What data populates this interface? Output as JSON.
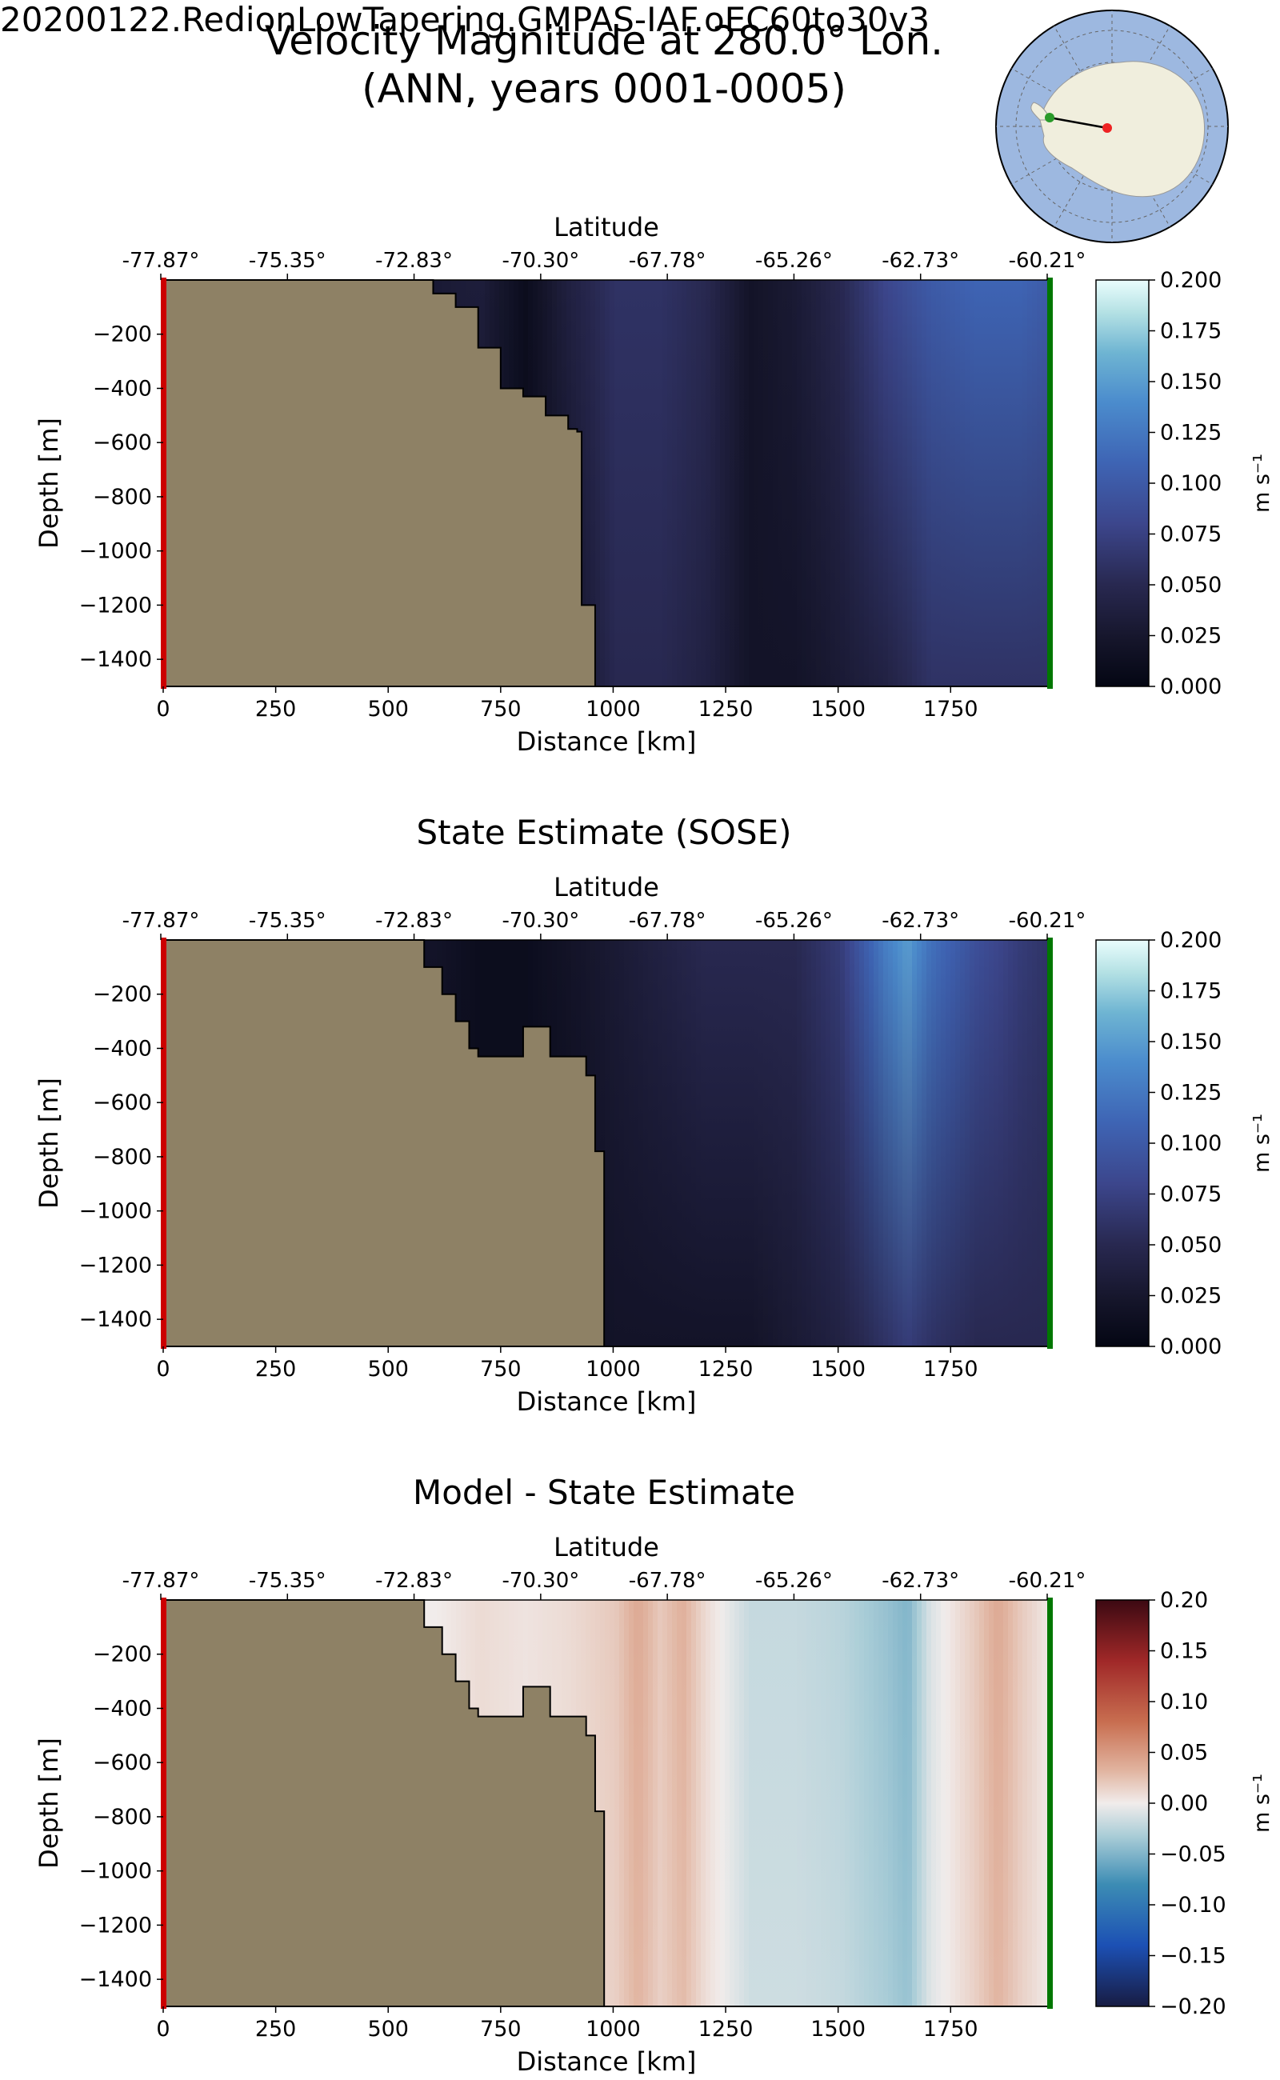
{
  "title_line1": "Velocity Magnitude at 280.0° Lon.",
  "title_line2": "(ANN, years 0001-0005)",
  "run_name": "20200122.RedionLowTapering.GMPAS-IAF.oEC60to30v3",
  "colors": {
    "land": "#8e8165",
    "start_marker": "#cc0000",
    "end_marker": "#007700",
    "map_ocean": "#9db8e0",
    "map_land": "#f0eedd"
  },
  "chart_data": [
    {
      "type": "heatmap",
      "title": "",
      "xlabel": "Distance [km]",
      "ylabel": "Depth [m]",
      "top_xlabel": "Latitude",
      "xlim": [
        0,
        1970
      ],
      "ylim": [
        -1500,
        0
      ],
      "x_ticks": [
        0,
        250,
        500,
        750,
        1000,
        1250,
        1500,
        1750
      ],
      "y_ticks": [
        -200,
        -400,
        -600,
        -800,
        -1000,
        -1200,
        -1400
      ],
      "lat_tick_labels": [
        "-77.87°",
        "-75.35°",
        "-72.83°",
        "-70.30°",
        "-67.78°",
        "-65.26°",
        "-62.73°",
        "-60.21°"
      ],
      "colorbar": {
        "label": "m s⁻¹",
        "range": [
          0,
          0.2
        ],
        "ticks": [
          "0.000",
          "0.025",
          "0.050",
          "0.075",
          "0.100",
          "0.125",
          "0.150",
          "0.175",
          "0.200"
        ],
        "colormap": "ice"
      },
      "bathymetry": {
        "distance_km": [
          0,
          570,
          600,
          650,
          700,
          750,
          800,
          850,
          900,
          920,
          930,
          960,
          960,
          1970
        ],
        "depth_m": [
          0,
          0,
          -50,
          -100,
          -250,
          -400,
          -430,
          -500,
          -550,
          -560,
          -1200,
          -1250,
          -1500,
          -1500
        ]
      },
      "velocity_profile": {
        "distance_km": [
          600,
          700,
          800,
          900,
          1000,
          1100,
          1200,
          1300,
          1400,
          1500,
          1600,
          1700,
          1800,
          1900,
          1970
        ],
        "surface_m_s": [
          0.03,
          0.035,
          0.01,
          0.04,
          0.06,
          0.06,
          0.05,
          0.02,
          0.03,
          0.05,
          0.08,
          0.1,
          0.11,
          0.11,
          0.1
        ],
        "bottom_m_s": [
          0.02,
          0.02,
          0.01,
          0.02,
          0.05,
          0.05,
          0.04,
          0.02,
          0.02,
          0.03,
          0.04,
          0.06,
          0.06,
          0.06,
          0.06
        ]
      }
    },
    {
      "type": "heatmap",
      "title": "State Estimate (SOSE)",
      "xlabel": "Distance [km]",
      "ylabel": "Depth [m]",
      "top_xlabel": "Latitude",
      "xlim": [
        0,
        1970
      ],
      "ylim": [
        -1500,
        0
      ],
      "x_ticks": [
        0,
        250,
        500,
        750,
        1000,
        1250,
        1500,
        1750
      ],
      "y_ticks": [
        -200,
        -400,
        -600,
        -800,
        -1000,
        -1200,
        -1400
      ],
      "lat_tick_labels": [
        "-77.87°",
        "-75.35°",
        "-72.83°",
        "-70.30°",
        "-67.78°",
        "-65.26°",
        "-62.73°",
        "-60.21°"
      ],
      "colorbar": {
        "label": "m s⁻¹",
        "range": [
          0,
          0.2
        ],
        "ticks": [
          "0.000",
          "0.025",
          "0.050",
          "0.075",
          "0.100",
          "0.125",
          "0.150",
          "0.175",
          "0.200"
        ],
        "colormap": "ice"
      },
      "bathymetry": {
        "distance_km": [
          0,
          570,
          580,
          620,
          650,
          680,
          700,
          750,
          790,
          800,
          820,
          860,
          880,
          900,
          940,
          960,
          960,
          980,
          980,
          1970
        ],
        "depth_m": [
          0,
          0,
          -100,
          -200,
          -300,
          -400,
          -430,
          -430,
          -430,
          -320,
          -320,
          -430,
          -430,
          -430,
          -500,
          -600,
          -780,
          -800,
          -1500,
          -1500
        ]
      },
      "velocity_profile": {
        "distance_km": [
          600,
          700,
          800,
          900,
          1000,
          1100,
          1200,
          1300,
          1400,
          1500,
          1600,
          1650,
          1700,
          1800,
          1900,
          1970
        ],
        "surface_m_s": [
          0.02,
          0.01,
          0.01,
          0.02,
          0.03,
          0.04,
          0.05,
          0.05,
          0.05,
          0.07,
          0.13,
          0.15,
          0.12,
          0.09,
          0.07,
          0.06
        ],
        "bottom_m_s": [
          0.01,
          0.01,
          0.01,
          0.01,
          0.02,
          0.02,
          0.02,
          0.02,
          0.03,
          0.04,
          0.06,
          0.07,
          0.06,
          0.05,
          0.05,
          0.05
        ]
      }
    },
    {
      "type": "heatmap",
      "title": "Model - State Estimate",
      "xlabel": "Distance [km]",
      "ylabel": "Depth [m]",
      "top_xlabel": "Latitude",
      "xlim": [
        0,
        1970
      ],
      "ylim": [
        -1500,
        0
      ],
      "x_ticks": [
        0,
        250,
        500,
        750,
        1000,
        1250,
        1500,
        1750
      ],
      "y_ticks": [
        -200,
        -400,
        -600,
        -800,
        -1000,
        -1200,
        -1400
      ],
      "lat_tick_labels": [
        "-77.87°",
        "-75.35°",
        "-72.83°",
        "-70.30°",
        "-67.78°",
        "-65.26°",
        "-62.73°",
        "-60.21°"
      ],
      "colorbar": {
        "label": "m s⁻¹",
        "range": [
          -0.2,
          0.2
        ],
        "ticks": [
          "0.20",
          "0.15",
          "0.10",
          "0.05",
          "0.00",
          "−0.05",
          "−0.10",
          "−0.15",
          "−0.20"
        ],
        "colormap": "balance"
      },
      "bathymetry": {
        "distance_km": [
          0,
          570,
          580,
          620,
          650,
          680,
          700,
          750,
          790,
          800,
          820,
          860,
          880,
          900,
          940,
          960,
          960,
          980,
          980,
          1970
        ],
        "depth_m": [
          0,
          0,
          -100,
          -200,
          -300,
          -400,
          -430,
          -430,
          -430,
          -320,
          -320,
          -430,
          -430,
          -430,
          -500,
          -600,
          -780,
          -800,
          -1500,
          -1500
        ]
      },
      "difference_profile": {
        "distance_km": [
          600,
          700,
          800,
          900,
          1000,
          1050,
          1100,
          1150,
          1200,
          1250,
          1300,
          1400,
          1500,
          1600,
          1650,
          1700,
          1800,
          1850,
          1900,
          1970
        ],
        "value_m_s": [
          0.0,
          0.01,
          0.005,
          0.01,
          0.02,
          0.04,
          0.02,
          0.035,
          0.01,
          -0.005,
          -0.02,
          -0.02,
          -0.025,
          -0.04,
          -0.05,
          -0.01,
          0.02,
          0.04,
          0.02,
          0.0
        ]
      }
    }
  ]
}
